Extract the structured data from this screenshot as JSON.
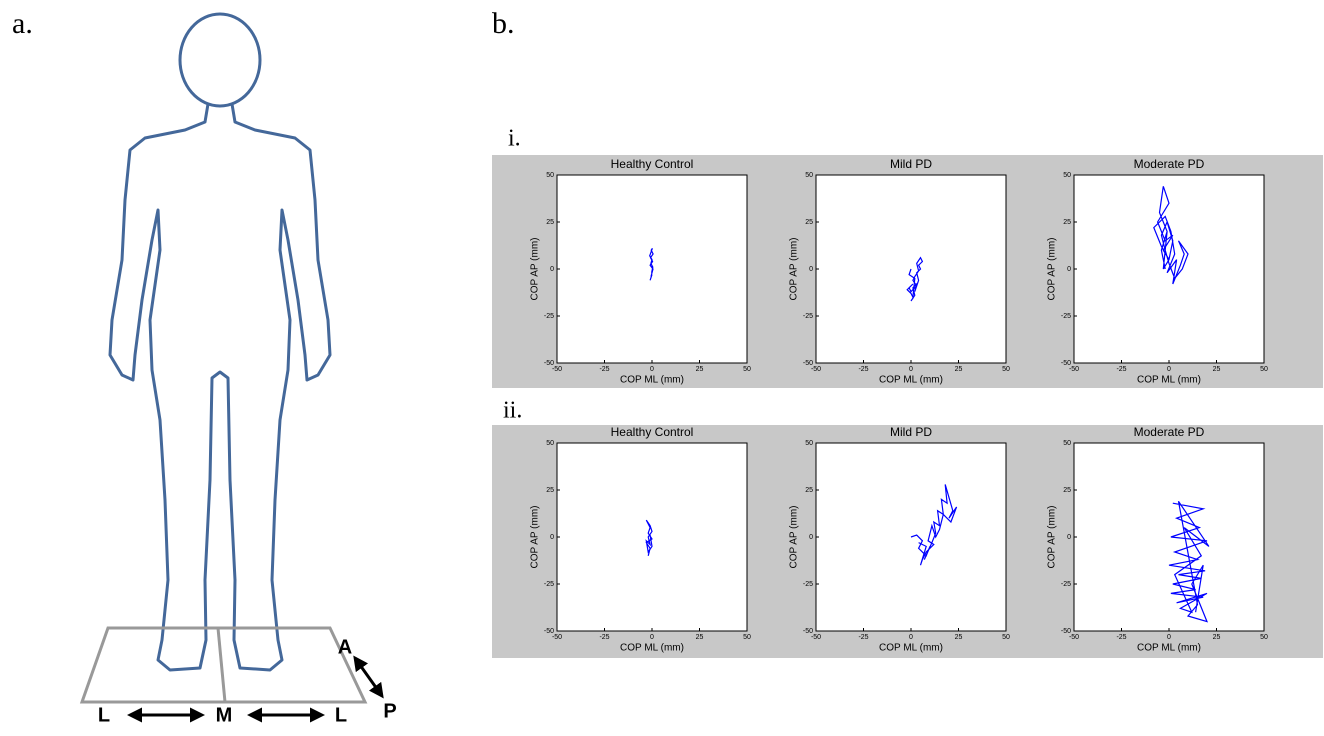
{
  "panel_labels": {
    "a": "a.",
    "b": "b.",
    "i": "i.",
    "ii": "ii."
  },
  "force_plate_labels": [
    "L",
    "M",
    "L"
  ],
  "direction_labels": [
    "A",
    "P"
  ],
  "chart_data": [
    {
      "type": "line",
      "title": "Healthy Control",
      "xlabel": "COP ML (mm)",
      "ylabel": "COP AP (mm)",
      "color": "#0000ff",
      "xlim": [
        -50,
        50
      ],
      "ylim": [
        -50,
        50
      ],
      "xticks": [
        -50,
        -25,
        0,
        25,
        50
      ],
      "yticks": [
        -50,
        -25,
        0,
        25,
        50
      ],
      "x": [
        -1,
        0,
        -0.5,
        0.5,
        -1,
        0.3,
        -0.8,
        0.6,
        -0.4,
        0.2,
        -1.2,
        0,
        -0.6,
        0.4,
        -0.2
      ],
      "values": [
        -6,
        -3,
        -4,
        0,
        2,
        4,
        6,
        8,
        10,
        11,
        7,
        5,
        3,
        1,
        -2
      ]
    },
    {
      "type": "line",
      "title": "Mild PD",
      "xlabel": "COP ML (mm)",
      "ylabel": "COP AP (mm)",
      "color": "#0000ff",
      "xlim": [
        -50,
        50
      ],
      "ylim": [
        -50,
        50
      ],
      "xticks": [
        -50,
        -25,
        0,
        25,
        50
      ],
      "yticks": [
        -50,
        -25,
        0,
        25,
        50
      ],
      "x": [
        0,
        2,
        1,
        3,
        2,
        4,
        3,
        5,
        4,
        6,
        5,
        3,
        4,
        2,
        1,
        3,
        0,
        -1,
        1,
        -2,
        0,
        1,
        2,
        -1,
        0
      ],
      "values": [
        -17,
        -14,
        -10,
        -8,
        -12,
        -6,
        -2,
        0,
        2,
        4,
        6,
        3,
        -1,
        -4,
        -6,
        -9,
        -12,
        -10,
        -8,
        -11,
        -13,
        -15,
        -5,
        -3,
        0
      ]
    },
    {
      "type": "line",
      "title": "Moderate PD",
      "xlabel": "COP ML (mm)",
      "ylabel": "COP AP (mm)",
      "color": "#0000ff",
      "xlim": [
        -50,
        50
      ],
      "ylim": [
        -50,
        50
      ],
      "xticks": [
        -50,
        -25,
        0,
        25,
        50
      ],
      "yticks": [
        -50,
        -25,
        0,
        25,
        50
      ],
      "x": [
        -2,
        -4,
        -1,
        -5,
        -3,
        0,
        -6,
        -2,
        2,
        -3,
        0,
        -4,
        -8,
        -2,
        1,
        3,
        -1,
        4,
        2,
        6,
        8,
        5,
        10,
        7,
        3,
        0,
        -2,
        -4,
        -1,
        2,
        0,
        -3,
        -1
      ],
      "values": [
        0,
        10,
        20,
        30,
        44,
        35,
        25,
        15,
        18,
        10,
        5,
        12,
        22,
        28,
        20,
        8,
        -2,
        5,
        -8,
        2,
        8,
        15,
        8,
        0,
        -5,
        3,
        10,
        18,
        25,
        15,
        5,
        0,
        20
      ]
    },
    {
      "type": "line",
      "title": "Healthy Control",
      "xlabel": "COP ML (mm)",
      "ylabel": "COP AP (mm)",
      "color": "#0000ff",
      "xlim": [
        -50,
        50
      ],
      "ylim": [
        -50,
        50
      ],
      "xticks": [
        -50,
        -25,
        0,
        25,
        50
      ],
      "yticks": [
        -50,
        -25,
        0,
        25,
        50
      ],
      "x": [
        -2,
        -1,
        -3,
        0,
        -2,
        -1,
        -3,
        -1,
        0,
        -2,
        -1,
        -3,
        -2,
        0,
        -1
      ],
      "values": [
        -10,
        -6,
        -3,
        -1,
        2,
        5,
        9,
        6,
        3,
        0,
        -4,
        -2,
        -8,
        -5,
        1
      ]
    },
    {
      "type": "line",
      "title": "Mild PD",
      "xlabel": "COP ML (mm)",
      "ylabel": "COP AP (mm)",
      "color": "#0000ff",
      "xlim": [
        -50,
        50
      ],
      "ylim": [
        -50,
        50
      ],
      "xticks": [
        -50,
        -25,
        0,
        25,
        50
      ],
      "yticks": [
        -50,
        -25,
        0,
        25,
        50
      ],
      "x": [
        0,
        3,
        6,
        4,
        8,
        10,
        7,
        11,
        13,
        12,
        15,
        14,
        17,
        16,
        19,
        18,
        22,
        20,
        24,
        21,
        17,
        15,
        13,
        11,
        9,
        12,
        8,
        6,
        5,
        8,
        4
      ],
      "values": [
        0,
        1,
        -2,
        -6,
        -10,
        -5,
        -12,
        -3,
        2,
        8,
        6,
        14,
        12,
        20,
        18,
        28,
        14,
        10,
        16,
        8,
        12,
        4,
        0,
        6,
        -2,
        -4,
        -8,
        -12,
        -15,
        -5,
        -3
      ]
    },
    {
      "type": "line",
      "title": "Moderate PD",
      "xlabel": "COP ML (mm)",
      "ylabel": "COP AP (mm)",
      "color": "#0000ff",
      "xlim": [
        -50,
        50
      ],
      "ylim": [
        -50,
        50
      ],
      "xticks": [
        -50,
        -25,
        0,
        25,
        50
      ],
      "yticks": [
        -50,
        -25,
        0,
        25,
        50
      ],
      "x": [
        2,
        18,
        4,
        16,
        1,
        20,
        3,
        15,
        0,
        19,
        5,
        17,
        2,
        14,
        1,
        18,
        4,
        20,
        6,
        12,
        3,
        17,
        8,
        21,
        5,
        15,
        10,
        20,
        12,
        18,
        14
      ],
      "values": [
        18,
        15,
        10,
        5,
        0,
        -2,
        -8,
        -12,
        -15,
        -18,
        -20,
        -22,
        -25,
        -28,
        -30,
        -32,
        -35,
        -30,
        -38,
        -40,
        -20,
        -10,
        5,
        -5,
        19,
        -36,
        -42,
        -45,
        -25,
        -15,
        -40
      ]
    }
  ]
}
